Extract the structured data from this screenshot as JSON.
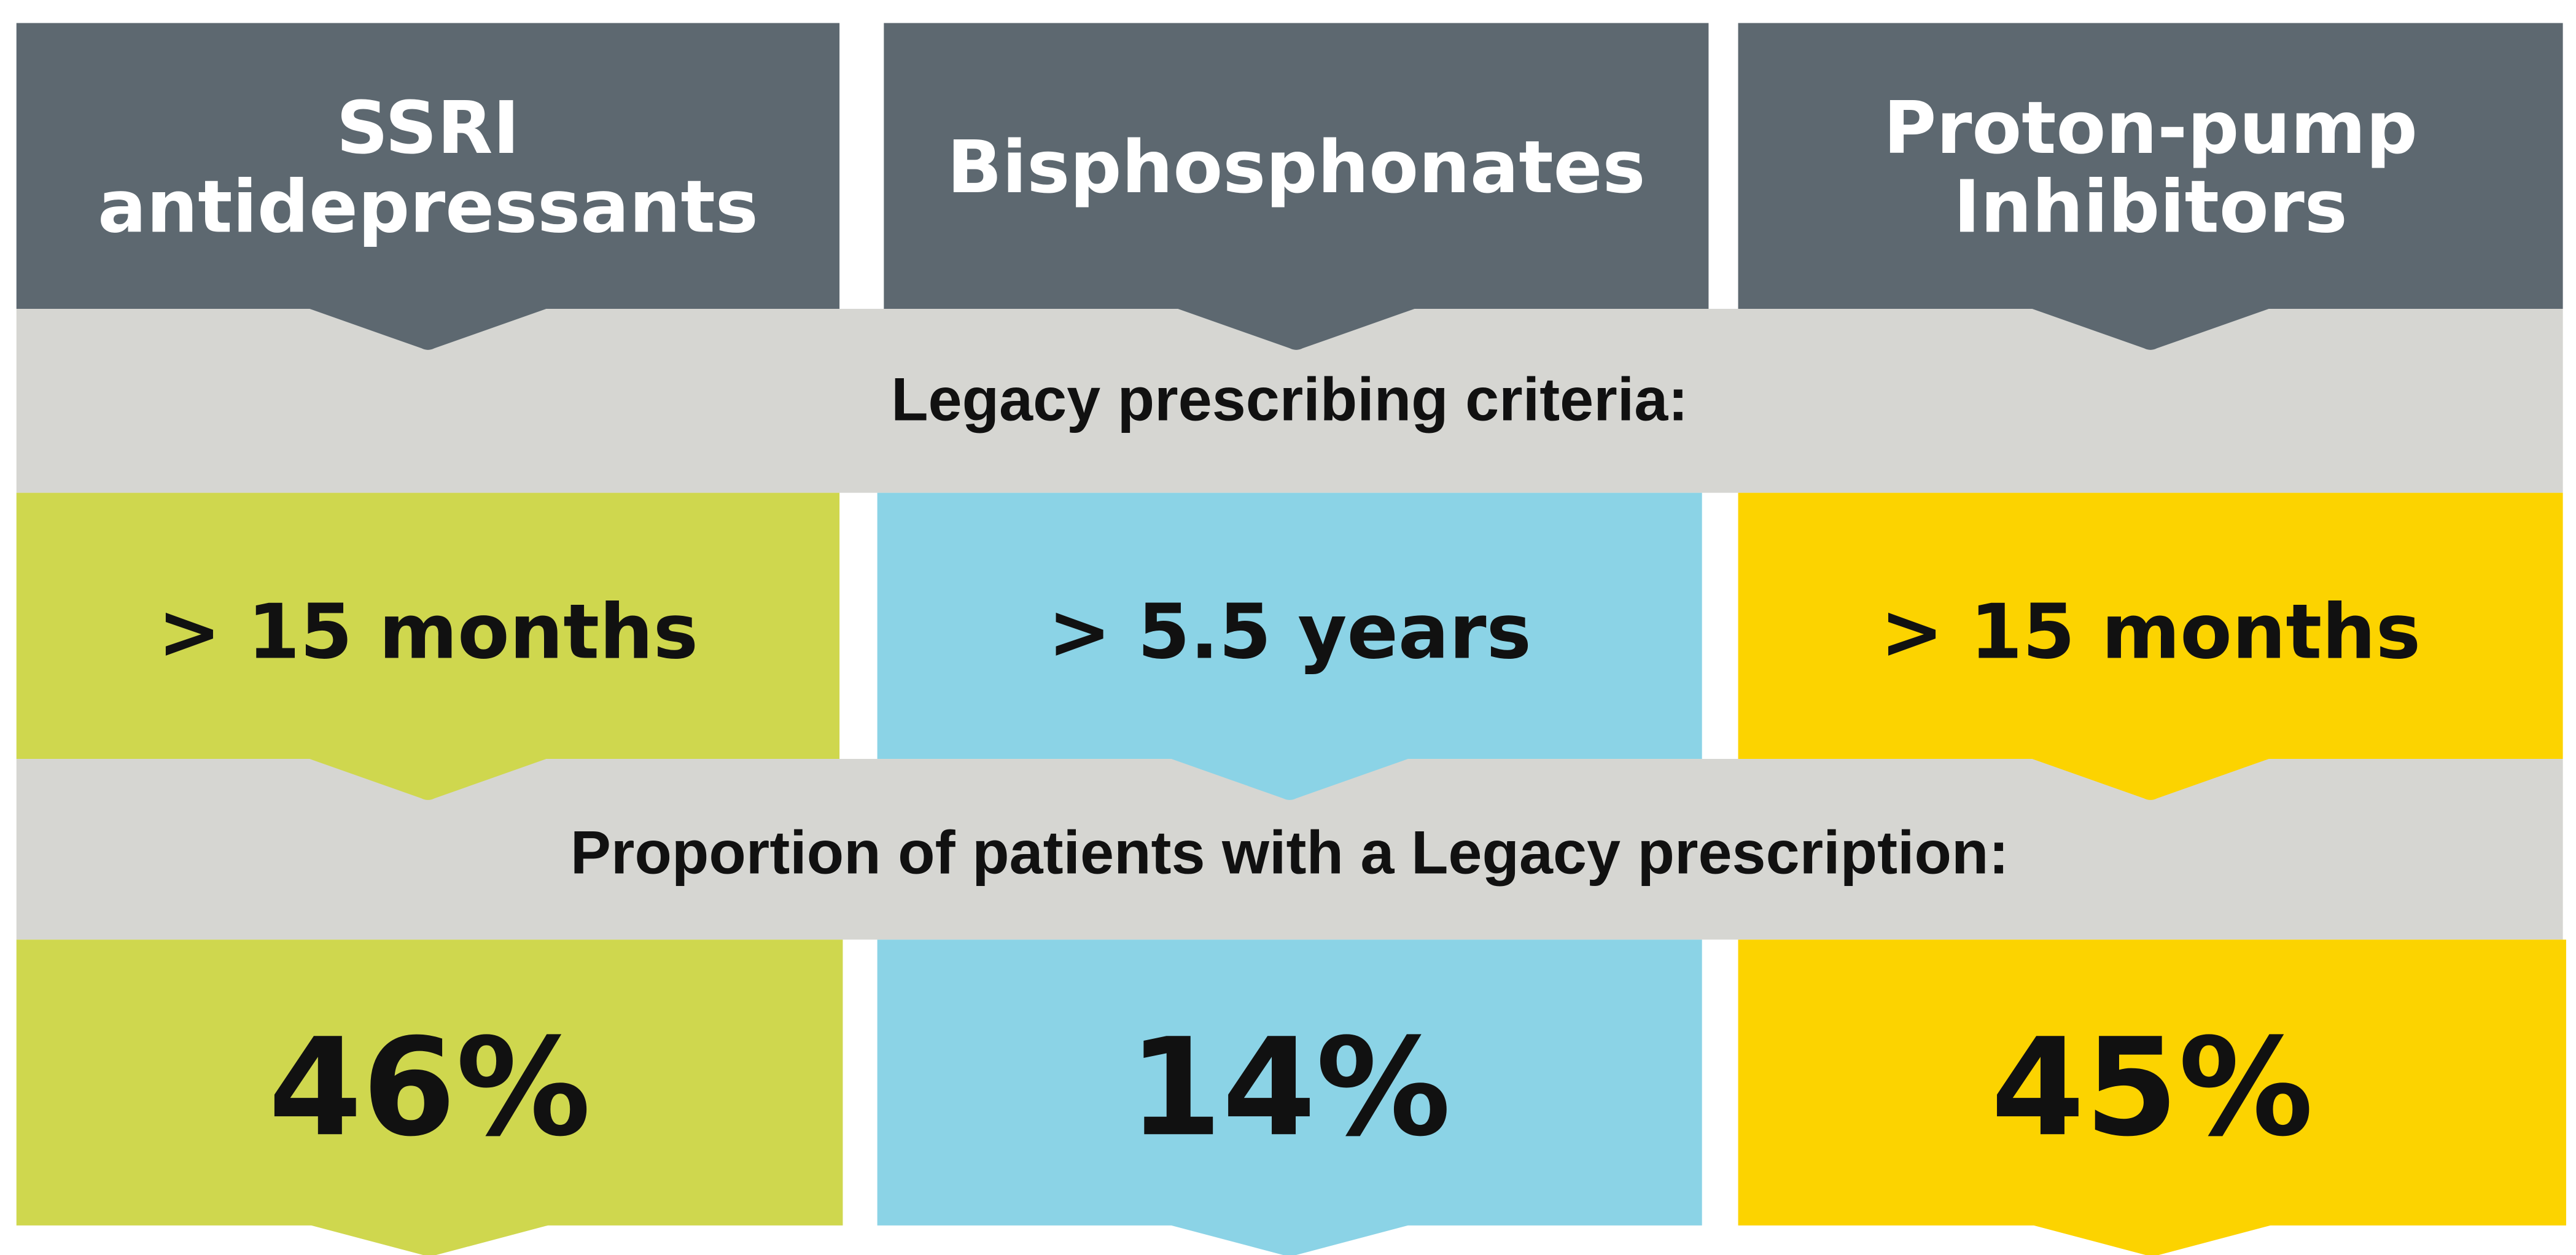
{
  "bands": [
    "Legacy prescribing criteria:",
    "Proportion of patients with a Legacy prescription:"
  ],
  "columns": [
    {
      "name": [
        "SSRI",
        "antidepressants"
      ],
      "criteria": "> 15 months",
      "proportion": "46%",
      "color": "#cfd74e"
    },
    {
      "name": [
        "Bisphosphonates"
      ],
      "criteria": "> 5.5 years",
      "proportion": "14%",
      "color": "#8bd3e6"
    },
    {
      "name": [
        "Proton-pump",
        "Inhibitors"
      ],
      "criteria": "> 15 months",
      "proportion": "45%",
      "color": "#fcd300"
    }
  ]
}
